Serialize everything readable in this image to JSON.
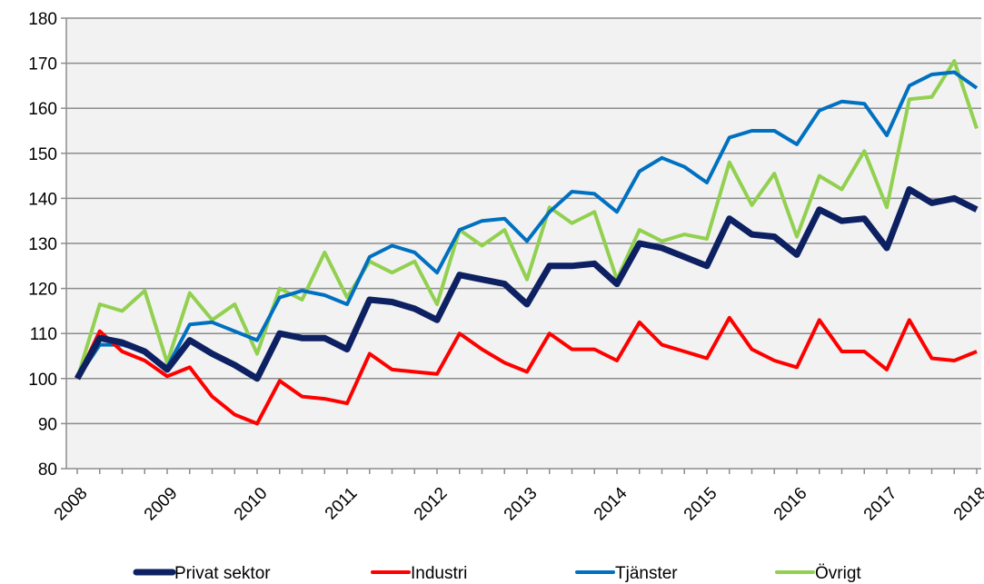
{
  "chart_data": {
    "type": "line",
    "categories": [
      "2008",
      null,
      null,
      null,
      "2009",
      null,
      null,
      null,
      "2010",
      null,
      null,
      null,
      "2011",
      null,
      null,
      null,
      "2012",
      null,
      null,
      null,
      "2013",
      null,
      null,
      null,
      "2014",
      null,
      null,
      null,
      "2015",
      null,
      null,
      null,
      "2016",
      null,
      null,
      null,
      "2017",
      null,
      null,
      null,
      "2018"
    ],
    "series": [
      {
        "name": "Privat sektor",
        "color": "#0d2061",
        "values": [
          100,
          109,
          108,
          106,
          102,
          108.5,
          105.5,
          103,
          100,
          110,
          109,
          109,
          106.5,
          117.5,
          117,
          115.5,
          113,
          123,
          122,
          121,
          116.5,
          125,
          125,
          125.5,
          121,
          130,
          129,
          127,
          125,
          135.5,
          132,
          131.5,
          127.5,
          137.5,
          135,
          135.5,
          129,
          142,
          139,
          140,
          137.5
        ]
      },
      {
        "name": "Industri",
        "color": "#ff0000",
        "values": [
          100,
          110.5,
          106,
          104,
          100.5,
          102.5,
          96,
          92,
          90,
          99.5,
          96,
          95.5,
          94.5,
          105.5,
          102,
          101.5,
          101,
          110,
          106.5,
          103.5,
          101.5,
          110,
          106.5,
          106.5,
          104,
          112.5,
          107.5,
          106,
          104.5,
          113.5,
          106.5,
          104,
          102.5,
          113,
          106,
          106,
          102,
          113,
          104.5,
          104,
          106
        ]
      },
      {
        "name": "Tjänster",
        "color": "#0070c0",
        "values": [
          100,
          107.5,
          107.5,
          106,
          102.5,
          112,
          112.5,
          110.5,
          108.5,
          118,
          119.5,
          118.5,
          116.5,
          127,
          129.5,
          128,
          123.5,
          133,
          135,
          135.5,
          130.5,
          137,
          141.5,
          141,
          137,
          146,
          149,
          147,
          143.5,
          153.5,
          155,
          155,
          152,
          159.5,
          161.5,
          161,
          154,
          165,
          167.5,
          168,
          164.5
        ]
      },
      {
        "name": "Övrigt",
        "color": "#92d050",
        "values": [
          100,
          116.5,
          115,
          119.5,
          103.5,
          119,
          113,
          116.5,
          105.5,
          120,
          117.5,
          128,
          118,
          126,
          123.5,
          126,
          116.5,
          133,
          129.5,
          133,
          122,
          138,
          134.5,
          137,
          122,
          133,
          130.5,
          132,
          131,
          148,
          138.5,
          145.5,
          131.5,
          145,
          142,
          150.5,
          138,
          162,
          162.5,
          170.5,
          155.5
        ]
      }
    ],
    "ylim": [
      80,
      180
    ],
    "yticks": [
      80,
      90,
      100,
      110,
      120,
      130,
      140,
      150,
      160,
      170,
      180
    ],
    "grid": true,
    "legend": "bottom"
  }
}
